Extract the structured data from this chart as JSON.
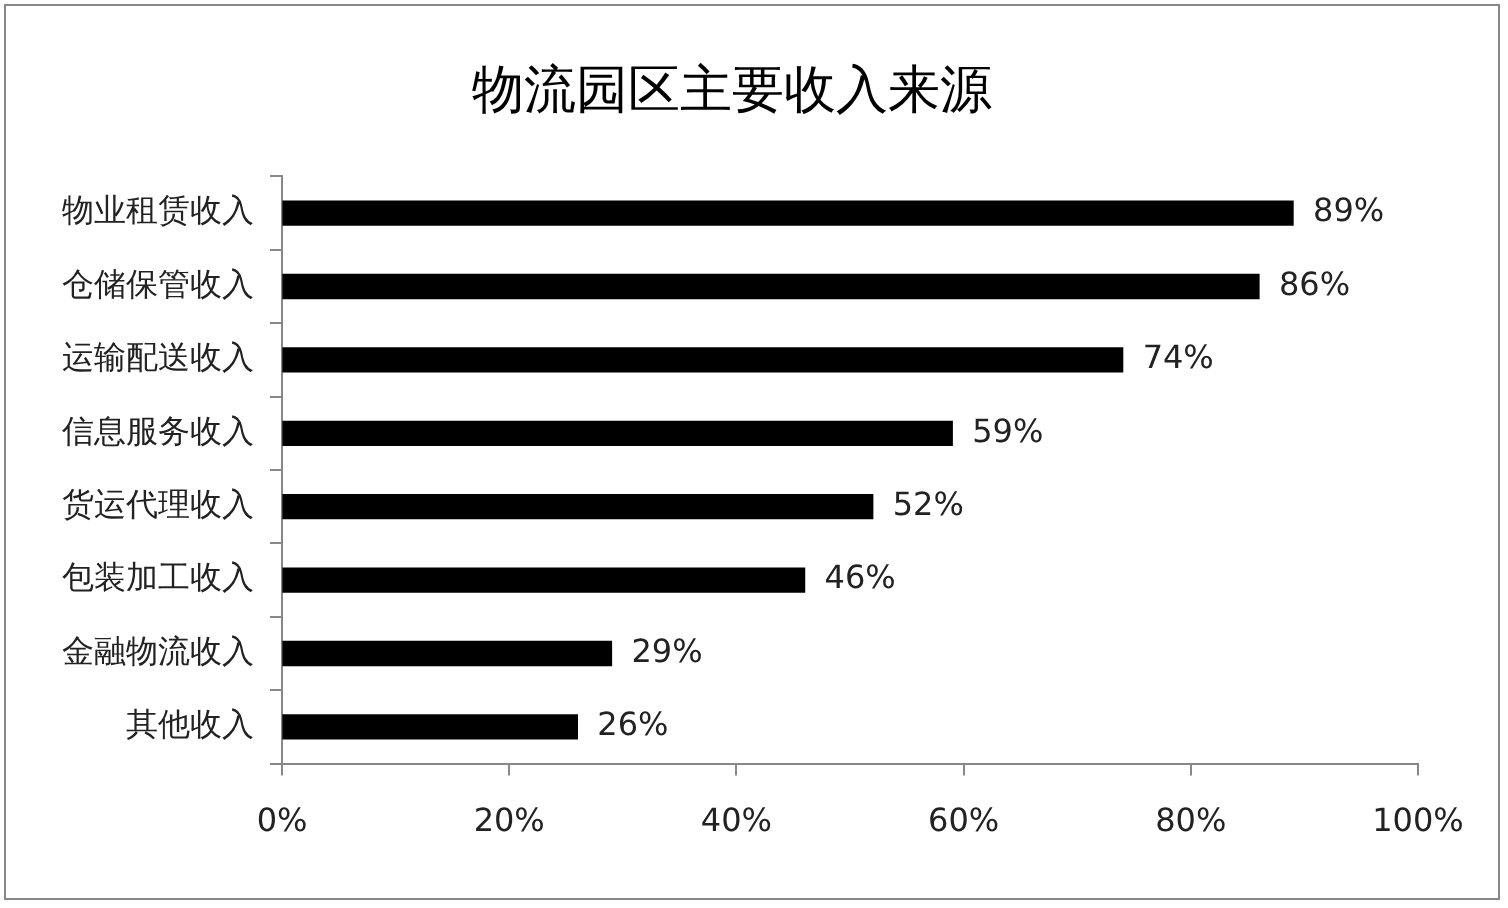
{
  "chart_data": {
    "type": "bar",
    "orientation": "horizontal",
    "title": "物流园区主要收入来源",
    "categories": [
      "物业租赁收入",
      "仓储保管收入",
      "运输配送收入",
      "信息服务收入",
      "货运代理收入",
      "包装加工收入",
      "金融物流收入",
      "其他收入"
    ],
    "values": [
      89,
      86,
      74,
      59,
      52,
      46,
      29,
      26
    ],
    "value_labels": [
      "89%",
      "86%",
      "74%",
      "59%",
      "52%",
      "46%",
      "29%",
      "26%"
    ],
    "color": "#000000",
    "xlim": [
      0,
      100
    ],
    "xticks": [
      {
        "value": 0,
        "label": "0%"
      },
      {
        "value": 20,
        "label": "20%"
      },
      {
        "value": 40,
        "label": "40%"
      },
      {
        "value": 60,
        "label": "60%"
      },
      {
        "value": 80,
        "label": "80%"
      },
      {
        "value": 100,
        "label": "100%"
      }
    ],
    "grid": false,
    "legend": false
  }
}
